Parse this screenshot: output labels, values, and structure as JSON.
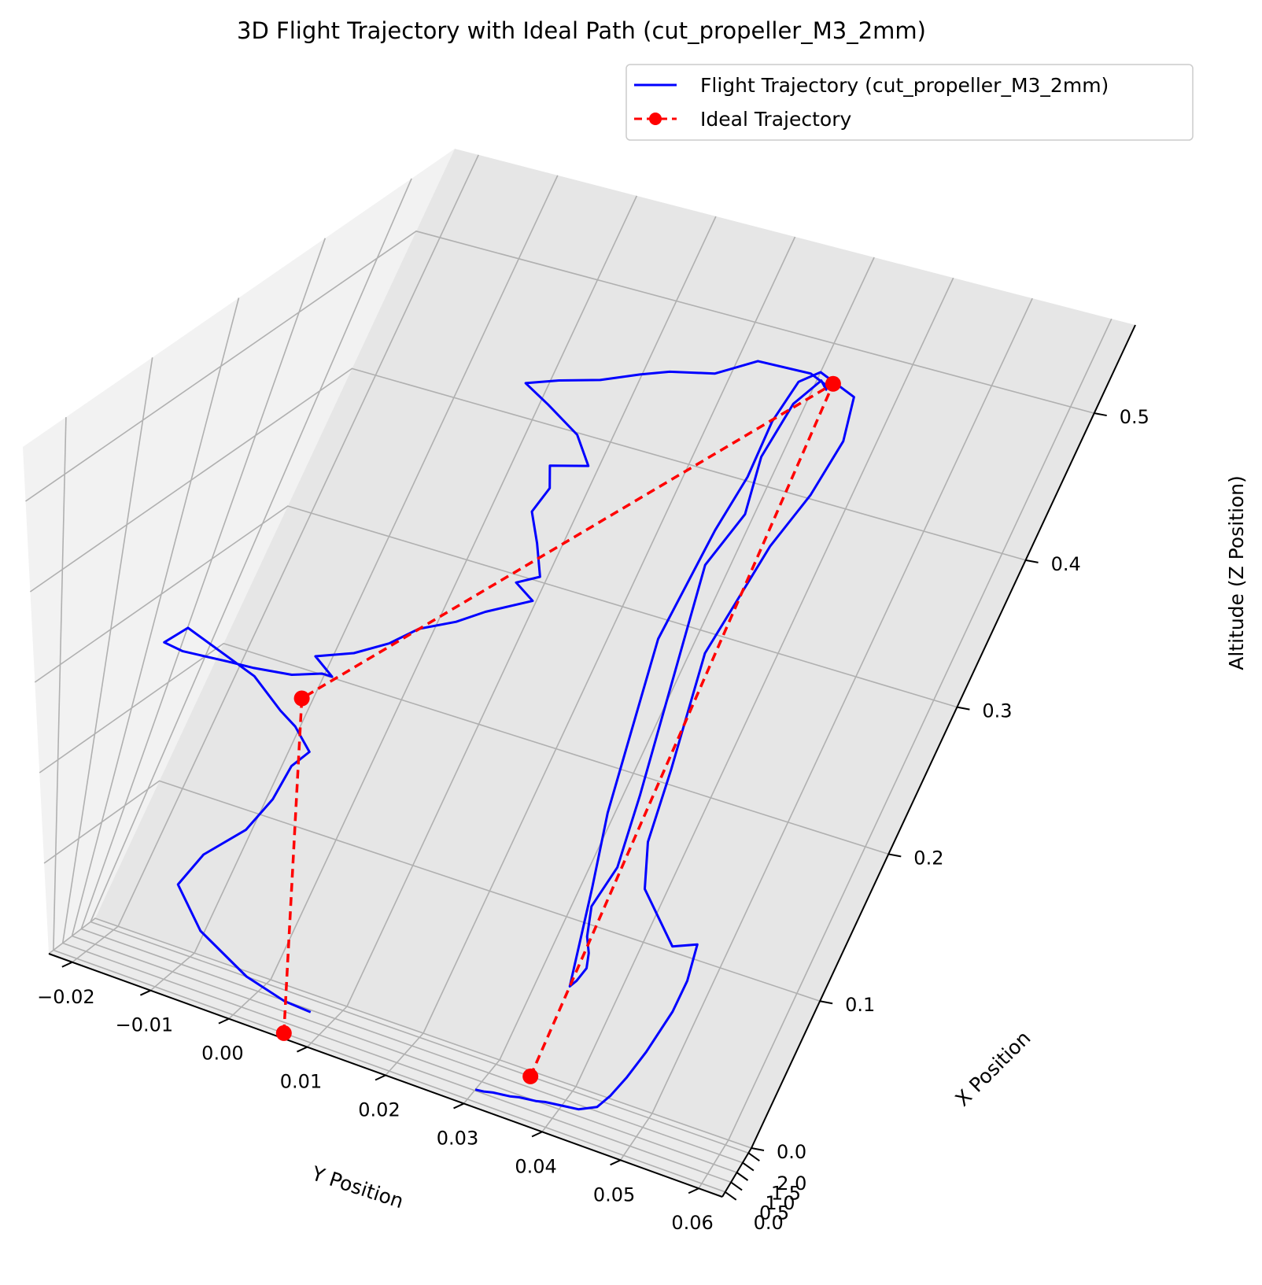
{
  "chart_data": {
    "type": "line",
    "title": "3D Flight Trajectory with Ideal Path (cut_propeller_M3_2mm)",
    "xlabel": "X Position",
    "ylabel": "Y Position",
    "zlabel": "Altitude (Z Position)",
    "xlim": [
      -0.25,
      2.25
    ],
    "ylim": [
      -0.023,
      0.063
    ],
    "zlim": [
      0.0,
      0.56
    ],
    "x_ticks": [
      "0.0",
      "0.5",
      "1.0",
      "1.5",
      "2.0"
    ],
    "y_ticks": [
      "−0.02",
      "−0.01",
      "0.00",
      "0.01",
      "0.02",
      "0.03",
      "0.04",
      "0.05",
      "0.06"
    ],
    "z_ticks": [
      "0.0",
      "0.1",
      "0.2",
      "0.3",
      "0.4",
      "0.5"
    ],
    "grid": true,
    "legend_position": "top-right",
    "colors": {
      "flight": "#0000ff",
      "ideal": "#ff0000",
      "pane_left": "#f2f2f2",
      "pane_right": "#e6e6e6",
      "pane_floor": "#ebebeb",
      "grid": "#b0b0b0"
    },
    "series": [
      {
        "name": "Flight Trajectory (cut_propeller_M3_2mm)",
        "style": "solid",
        "points": [
          [
            -0.25,
            0.0105,
            0.04
          ],
          [
            -0.2,
            0.007,
            0.04
          ],
          [
            -0.15,
            0.002,
            0.05
          ],
          [
            -0.12,
            -0.004,
            0.08
          ],
          [
            -0.1,
            -0.007,
            0.12
          ],
          [
            -0.08,
            -0.004,
            0.16
          ],
          [
            -0.06,
            0.001,
            0.2
          ],
          [
            -0.04,
            0.004,
            0.24
          ],
          [
            -0.03,
            0.006,
            0.28
          ],
          [
            -0.02,
            0.008,
            0.3
          ],
          [
            -0.01,
            0.006,
            0.32
          ],
          [
            0.0,
            0.004,
            0.33
          ],
          [
            0.05,
            0.0,
            0.35
          ],
          [
            0.1,
            -0.009,
            0.37
          ],
          [
            0.12,
            -0.012,
            0.345
          ],
          [
            0.14,
            -0.01,
            0.34
          ],
          [
            0.18,
            -0.005,
            0.34
          ],
          [
            0.2,
            -0.002,
            0.34
          ],
          [
            0.25,
            0.002,
            0.34
          ],
          [
            0.3,
            0.005,
            0.345
          ],
          [
            0.32,
            0.006,
            0.343
          ],
          [
            0.38,
            0.003,
            0.35
          ],
          [
            0.42,
            0.007,
            0.36
          ],
          [
            0.5,
            0.01,
            0.37
          ],
          [
            0.6,
            0.012,
            0.38
          ],
          [
            0.7,
            0.015,
            0.385
          ],
          [
            0.8,
            0.017,
            0.39
          ],
          [
            0.9,
            0.021,
            0.4
          ],
          [
            0.95,
            0.018,
            0.405
          ],
          [
            1.0,
            0.02,
            0.41
          ],
          [
            1.05,
            0.018,
            0.43
          ],
          [
            1.08,
            0.016,
            0.45
          ],
          [
            1.1,
            0.017,
            0.47
          ],
          [
            1.12,
            0.016,
            0.485
          ],
          [
            1.15,
            0.02,
            0.49
          ],
          [
            1.2,
            0.017,
            0.505
          ],
          [
            1.25,
            0.012,
            0.515
          ],
          [
            1.3,
            0.008,
            0.52
          ],
          [
            1.35,
            0.011,
            0.523
          ],
          [
            1.4,
            0.015,
            0.526
          ],
          [
            1.5,
            0.018,
            0.526
          ],
          [
            1.6,
            0.02,
            0.522
          ],
          [
            1.7,
            0.024,
            0.518
          ],
          [
            1.8,
            0.025,
            0.515
          ],
          [
            1.9,
            0.026,
            0.512
          ],
          [
            1.95,
            0.032,
            0.508
          ],
          [
            1.98,
            0.034,
            0.5
          ],
          [
            2.0,
            0.034,
            0.495
          ],
          [
            2.0,
            0.033,
            0.5
          ],
          [
            2.0,
            0.031,
            0.48
          ],
          [
            2.0,
            0.03,
            0.44
          ],
          [
            2.0,
            0.031,
            0.4
          ],
          [
            2.0,
            0.029,
            0.36
          ],
          [
            2.0,
            0.03,
            0.32
          ],
          [
            2.0,
            0.031,
            0.28
          ],
          [
            2.0,
            0.032,
            0.24
          ],
          [
            2.0,
            0.033,
            0.2
          ],
          [
            2.0,
            0.034,
            0.15
          ],
          [
            2.0,
            0.033,
            0.12
          ],
          [
            2.0,
            0.034,
            0.1
          ],
          [
            2.0,
            0.035,
            0.09
          ],
          [
            2.0,
            0.0355,
            0.08
          ],
          [
            2.0,
            0.035,
            0.07
          ],
          [
            2.0,
            0.0345,
            0.065
          ],
          [
            2.05,
            0.032,
            0.13
          ],
          [
            2.05,
            0.03,
            0.18
          ],
          [
            2.05,
            0.029,
            0.22
          ],
          [
            2.05,
            0.028,
            0.26
          ],
          [
            2.05,
            0.027,
            0.3
          ],
          [
            2.05,
            0.0275,
            0.34
          ],
          [
            2.05,
            0.028,
            0.38
          ],
          [
            2.05,
            0.029,
            0.42
          ],
          [
            2.05,
            0.029,
            0.46
          ],
          [
            2.05,
            0.03,
            0.49
          ],
          [
            2.05,
            0.032,
            0.5
          ],
          [
            2.05,
            0.037,
            0.49
          ],
          [
            2.05,
            0.038,
            0.46
          ],
          [
            2.05,
            0.037,
            0.42
          ],
          [
            2.05,
            0.035,
            0.38
          ],
          [
            2.05,
            0.034,
            0.34
          ],
          [
            2.05,
            0.033,
            0.3
          ],
          [
            2.05,
            0.034,
            0.26
          ],
          [
            2.05,
            0.035,
            0.22
          ],
          [
            2.05,
            0.036,
            0.17
          ],
          [
            2.05,
            0.038,
            0.14
          ],
          [
            2.05,
            0.044,
            0.11
          ],
          [
            1.95,
            0.047,
            0.12
          ],
          [
            1.8,
            0.048,
            0.1
          ],
          [
            1.7,
            0.048,
            0.08
          ],
          [
            1.6,
            0.047,
            0.05
          ],
          [
            1.5,
            0.046,
            0.03
          ],
          [
            1.45,
            0.045,
            0.015
          ],
          [
            1.38,
            0.044,
            0.005
          ],
          [
            1.3,
            0.042,
            0.0
          ],
          [
            1.2,
            0.04,
            0.0
          ],
          [
            1.1,
            0.038,
            0.0
          ],
          [
            1.0,
            0.037,
            0.0
          ],
          [
            0.9,
            0.035,
            0.0
          ],
          [
            0.8,
            0.034,
            0.0
          ],
          [
            0.7,
            0.032,
            0.0
          ],
          [
            0.6,
            0.031,
            0.0
          ],
          [
            0.55,
            0.03,
            0.0
          ]
        ]
      },
      {
        "name": "Ideal Trajectory",
        "style": "dashed",
        "marker": "circle",
        "points": [
          [
            0.0,
            0.0065,
            0.0
          ],
          [
            0.0,
            0.0065,
            0.35
          ],
          [
            2.0,
            0.0345,
            0.5
          ],
          [
            2.0,
            0.0345,
            0.0
          ]
        ]
      }
    ]
  }
}
